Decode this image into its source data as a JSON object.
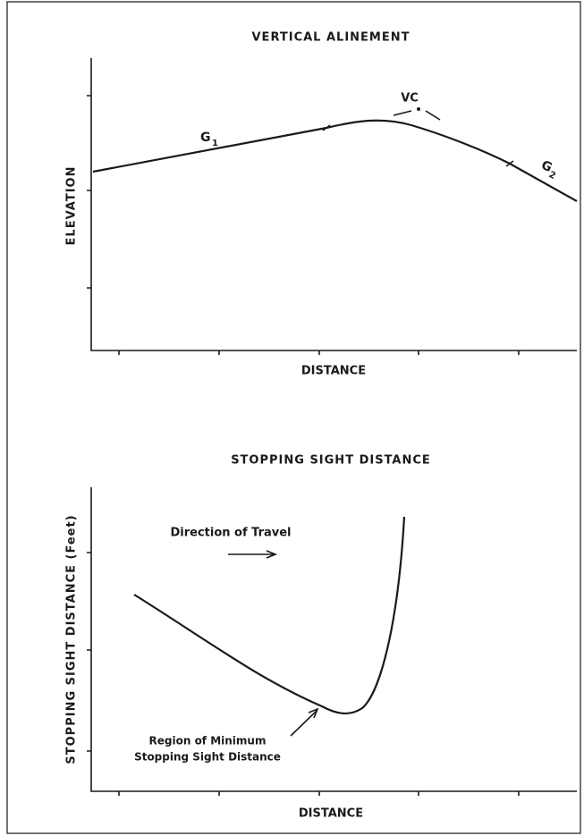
{
  "top_panel": {
    "title": "VERTICAL ALINEMENT",
    "y_axis_label": "ELEVATION",
    "x_axis_label": "DISTANCE",
    "grade_1": {
      "letter": "G",
      "subscript": "1"
    },
    "curve_label": "VC",
    "grade_2": {
      "letter": "G",
      "subscript": "2"
    }
  },
  "bottom_panel": {
    "title": "STOPPING SIGHT DISTANCE",
    "y_axis_label": "STOPPING SIGHT DISTANCE (Feet)",
    "x_axis_label": "DISTANCE",
    "direction_label": "Direction of Travel",
    "region_label": [
      "Region of Minimum",
      "Stopping Sight Distance"
    ]
  }
}
